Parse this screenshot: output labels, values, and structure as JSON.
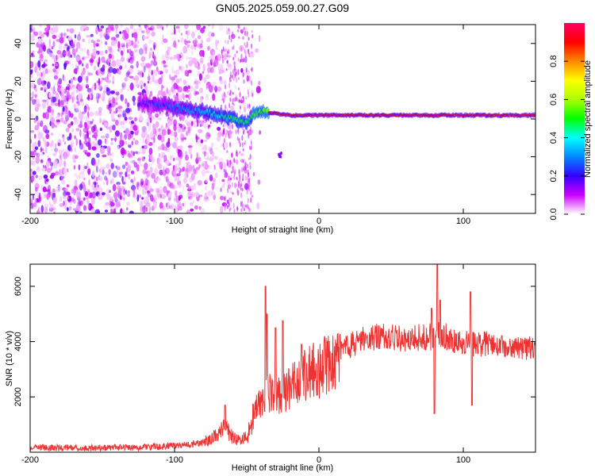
{
  "figure": {
    "title": "GN05.2025.059.00.27.G09"
  },
  "chart_data": [
    {
      "type": "heatmap",
      "xlabel": "Height of straight line (km)",
      "ylabel": "Frequency (Hz)",
      "xlim": [
        -200,
        150
      ],
      "ylim": [
        -50,
        50
      ],
      "xticks": [
        "-200",
        "-100",
        "0",
        "100"
      ],
      "xtick_values": [
        -200,
        -100,
        0,
        100
      ],
      "yticks": [
        "-40",
        "-20",
        "0",
        "20",
        "40"
      ],
      "ytick_values": [
        -40,
        -20,
        0,
        20,
        40
      ],
      "colorbar": {
        "label": "Normalized spectral amplitude",
        "range": [
          0,
          1
        ],
        "ticks": [
          "0.0",
          "0.2",
          "0.4",
          "0.6",
          "0.8"
        ],
        "tick_values": [
          0.0,
          0.2,
          0.4,
          0.6,
          0.8
        ],
        "colormap": [
          "#ffffff",
          "#cc00ff",
          "#3300ff",
          "#0088ff",
          "#00ffff",
          "#00ff00",
          "#aaff00",
          "#ffff00",
          "#ff8800",
          "#ff0000",
          "#ff0066"
        ]
      },
      "ridge": {
        "x": [
          -110,
          -100,
          -90,
          -80,
          -70,
          -60,
          -50,
          -45,
          -40,
          -30,
          -20,
          -10,
          0,
          20,
          50,
          80,
          100,
          120,
          150
        ],
        "frequency": [
          8,
          6,
          5,
          4,
          2,
          0,
          -2,
          3,
          4,
          3,
          2,
          2,
          2,
          2,
          2,
          2,
          2,
          2,
          2
        ]
      },
      "grid": false
    },
    {
      "type": "line",
      "xlabel": "Height of straight line (km)",
      "ylabel": "SNR (10 * v/v)",
      "xlim": [
        -200,
        150
      ],
      "ylim": [
        0,
        6800
      ],
      "xticks": [
        "-200",
        "-100",
        "0",
        "100"
      ],
      "xtick_values": [
        -200,
        -100,
        0,
        100
      ],
      "yticks": [
        "2000",
        "4000",
        "6000"
      ],
      "ytick_values": [
        2000,
        4000,
        6000
      ],
      "line_color": "#ee3333",
      "series": [
        {
          "x": [
            -200,
            -180,
            -160,
            -140,
            -120,
            -100,
            -90,
            -80,
            -70,
            -65,
            -60,
            -55,
            -50,
            -45,
            -40,
            -35,
            -30,
            -25,
            -20,
            -15,
            -10,
            -5,
            0,
            5,
            10,
            15,
            20,
            25,
            30,
            40,
            50,
            60,
            70,
            75,
            80,
            85,
            90,
            95,
            100,
            105,
            110,
            120,
            130,
            140,
            150
          ],
          "values": [
            160,
            160,
            150,
            170,
            180,
            240,
            280,
            360,
            600,
            880,
            550,
            420,
            520,
            1350,
            1900,
            2200,
            2050,
            2150,
            2350,
            2500,
            2750,
            2950,
            2950,
            3150,
            3350,
            3650,
            3850,
            3950,
            4050,
            4150,
            4150,
            4100,
            4150,
            4200,
            4150,
            4250,
            4150,
            4050,
            4000,
            3950,
            3900,
            3900,
            3850,
            3800,
            3750
          ]
        }
      ],
      "grid": false
    }
  ]
}
